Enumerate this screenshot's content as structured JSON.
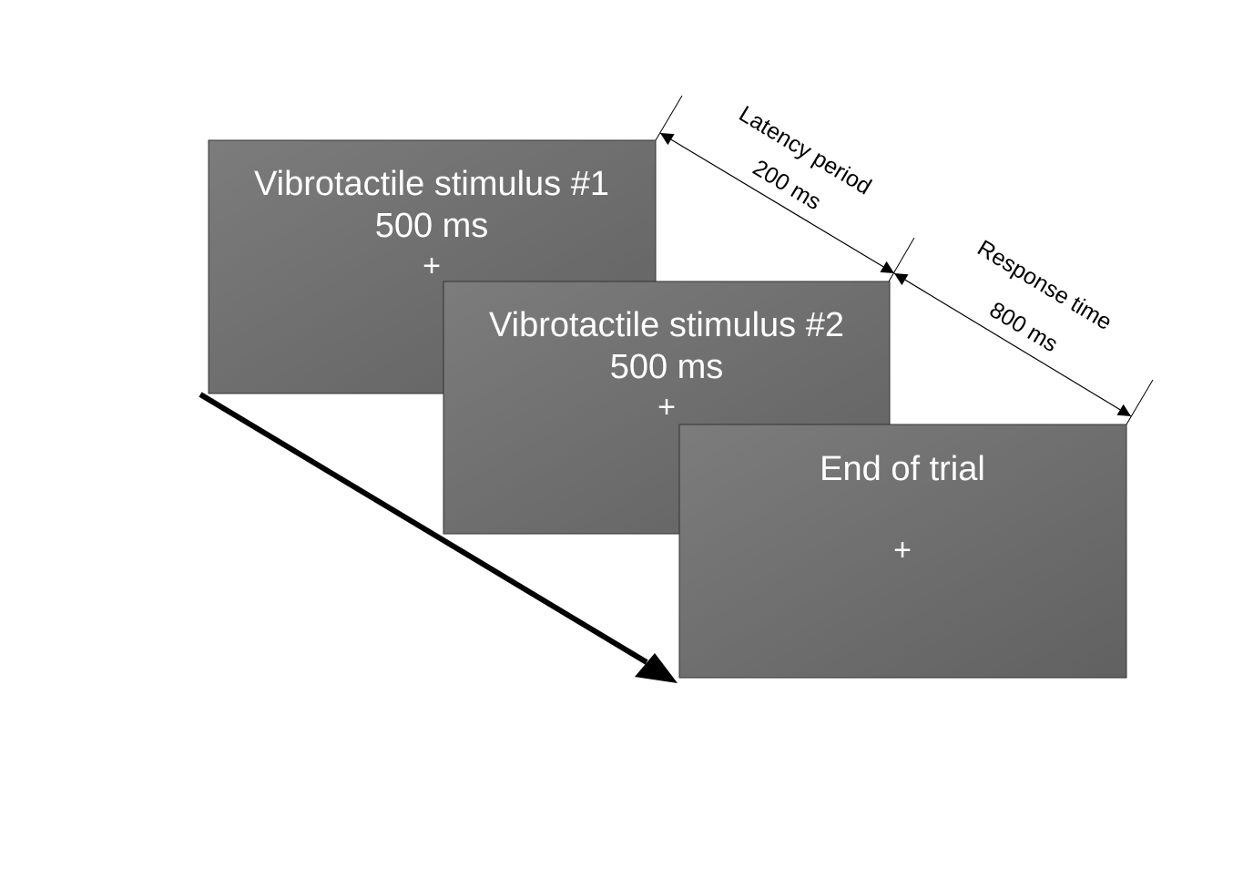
{
  "screens": [
    {
      "title": "Vibrotactile stimulus #1",
      "duration": "500 ms",
      "fixation": "+"
    },
    {
      "title": "Vibrotactile stimulus #2",
      "duration": "500 ms",
      "fixation": "+"
    },
    {
      "title": "End of trial",
      "fixation": "+"
    }
  ],
  "intervals": [
    {
      "label": "Latency period",
      "duration": "200 ms"
    },
    {
      "label": "Response time",
      "duration": "800 ms"
    }
  ],
  "colors": {
    "screen_fill_light": "#7c7c7c",
    "screen_fill_dark": "#616161",
    "screen_text": "#ffffff",
    "lines": "#000000"
  }
}
